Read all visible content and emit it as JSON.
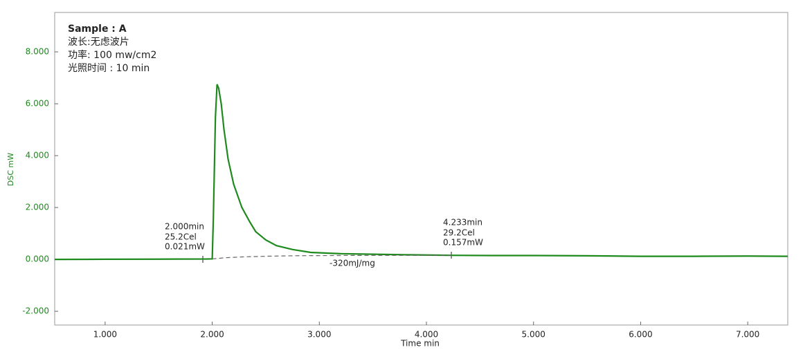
{
  "chart_data": {
    "type": "line",
    "info_lines": [
      "Sample : A",
      "波长:无虑波片",
      "功率: 100 mw/cm2",
      "光照时间 : 10 min"
    ],
    "xlabel": "Time min",
    "ylabel": "DSC mW",
    "x": [
      0.529,
      1.0,
      1.5,
      1.95,
      2.0,
      2.01,
      2.03,
      2.045,
      2.06,
      2.084,
      2.11,
      2.148,
      2.2,
      2.277,
      2.35,
      2.406,
      2.5,
      2.6,
      2.75,
      2.92,
      3.2,
      3.5,
      3.8,
      4.233,
      4.6,
      5.0,
      5.5,
      6.0,
      6.5,
      7.0,
      7.374
    ],
    "series": [
      {
        "color": "#1e8a1e",
        "dashed": false,
        "values": [
          0,
          0.005,
          0.01,
          0.015,
          0.021,
          1.5,
          5.5,
          6.75,
          6.6,
          6.0,
          5.0,
          3.87,
          2.9,
          2.0,
          1.45,
          1.07,
          0.75,
          0.53,
          0.38,
          0.27,
          0.22,
          0.2,
          0.18,
          0.157,
          0.15,
          0.15,
          0.14,
          0.12,
          0.12,
          0.13,
          0.12
        ]
      },
      {
        "color": "#666666",
        "dashed": true,
        "values": [
          null,
          null,
          null,
          null,
          0.021,
          0.025,
          0.03,
          0.035,
          0.04,
          0.05,
          0.06,
          0.07,
          0.08,
          0.095,
          0.105,
          0.11,
          0.12,
          0.13,
          0.14,
          0.145,
          0.15,
          0.155,
          0.156,
          0.157,
          null,
          null,
          null,
          null,
          null,
          null,
          null
        ]
      }
    ],
    "annotations": [
      {
        "lines": [
          "2.000min",
          "25.2Cel",
          "0.021mW"
        ]
      },
      {
        "lines": [
          "4.233min",
          "29.2Cel",
          "0.157mW"
        ]
      },
      {
        "lines": [
          "-320mJ/mg"
        ]
      }
    ],
    "xlim": [
      0.529,
      7.374
    ],
    "ylim": [
      -2.53,
      9.52
    ],
    "xticks": [
      {
        "value": 1,
        "label": "1.000"
      },
      {
        "value": 2,
        "label": "2.000"
      },
      {
        "value": 3,
        "label": "3.000"
      },
      {
        "value": 4,
        "label": "4.000"
      },
      {
        "value": 5,
        "label": "5.000"
      },
      {
        "value": 6,
        "label": "6.000"
      },
      {
        "value": 7,
        "label": "7.000"
      }
    ],
    "yticks": [
      {
        "value": -2,
        "label": "-2.000"
      },
      {
        "value": 0,
        "label": "0.000"
      },
      {
        "value": 2,
        "label": "2.000"
      },
      {
        "value": 4,
        "label": "4.000"
      },
      {
        "value": 6,
        "label": "6.000"
      },
      {
        "value": 8,
        "label": "8.000"
      }
    ],
    "ytick_color": "#1e8a1e"
  }
}
